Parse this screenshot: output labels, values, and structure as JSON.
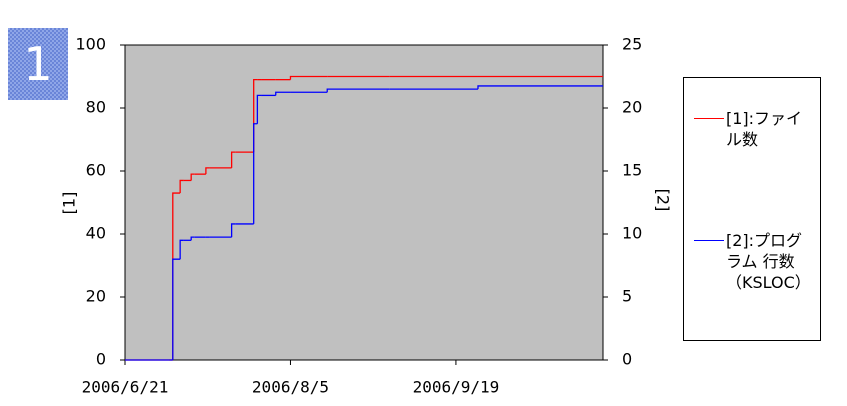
{
  "badge": "1",
  "chart_data": {
    "type": "step-line",
    "y_label": "[1]",
    "y2_label": "[2]",
    "x": [
      "2006/6/21",
      "2006/7/3",
      "2006/7/4",
      "2006/7/6",
      "2006/7/7",
      "2006/7/9",
      "2006/7/10",
      "2006/7/13",
      "2006/7/14",
      "2006/7/20",
      "2006/7/21",
      "2006/7/26",
      "2006/7/27",
      "2006/7/28",
      "2006/8/1",
      "2006/8/5",
      "2006/8/15",
      "2006/9/1",
      "2006/9/25",
      "2006/10/29"
    ],
    "xlim": [
      "2006/6/21",
      "2006/10/29"
    ],
    "xticks": [
      "2006/6/21",
      "2006/8/5",
      "2006/9/19"
    ],
    "ylim": [
      0,
      100
    ],
    "yticks": [
      0,
      20,
      40,
      60,
      80,
      100
    ],
    "y2lim": [
      0,
      25
    ],
    "y2ticks": [
      0,
      5,
      10,
      15,
      20,
      25
    ],
    "plot_background": "#c0c0c0",
    "series": [
      {
        "name": "[1]:ファイル数",
        "color": "#ff0000",
        "values": [
          0,
          0,
          53,
          57,
          57,
          59,
          59,
          61,
          61,
          66,
          66,
          89,
          89,
          89,
          89,
          90,
          90,
          90,
          90,
          90
        ]
      },
      {
        "name": "[2]:プログラム 行数（KSLOC）",
        "color": "#0000ff",
        "axis": "y2",
        "values": [
          0,
          0,
          8,
          9.5,
          9.5,
          9.75,
          9.75,
          9.75,
          9.75,
          10.8,
          10.8,
          18.75,
          21,
          21,
          21.25,
          21.25,
          21.5,
          21.5,
          21.75,
          21.75
        ]
      }
    ]
  }
}
